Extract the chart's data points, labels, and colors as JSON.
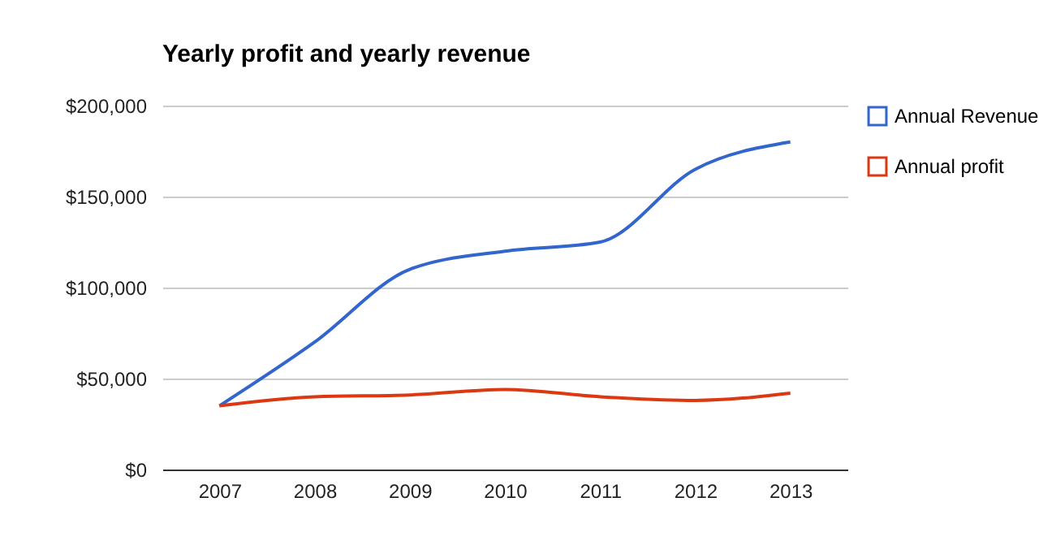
{
  "chart_data": {
    "type": "line",
    "title": "Yearly profit and yearly revenue",
    "categories": [
      "2007",
      "2008",
      "2009",
      "2010",
      "2011",
      "2012",
      "2013"
    ],
    "series": [
      {
        "name": "Annual Revenue",
        "color": "#3366cc",
        "values": [
          35000,
          70000,
          110000,
          120000,
          125000,
          165000,
          180000
        ]
      },
      {
        "name": "Annual profit",
        "color": "#dc3912",
        "values": [
          35000,
          40000,
          41000,
          44000,
          40000,
          38000,
          42000
        ]
      }
    ],
    "ylim": [
      0,
      200000
    ],
    "yticks": [
      {
        "value": 0,
        "label": "$0"
      },
      {
        "value": 50000,
        "label": "$50,000"
      },
      {
        "value": 100000,
        "label": "$100,000"
      },
      {
        "value": 150000,
        "label": "$150,000"
      },
      {
        "value": 200000,
        "label": "$200,000"
      }
    ],
    "grid": "y",
    "legend": "right",
    "marker": "none",
    "line_style": "solid"
  }
}
